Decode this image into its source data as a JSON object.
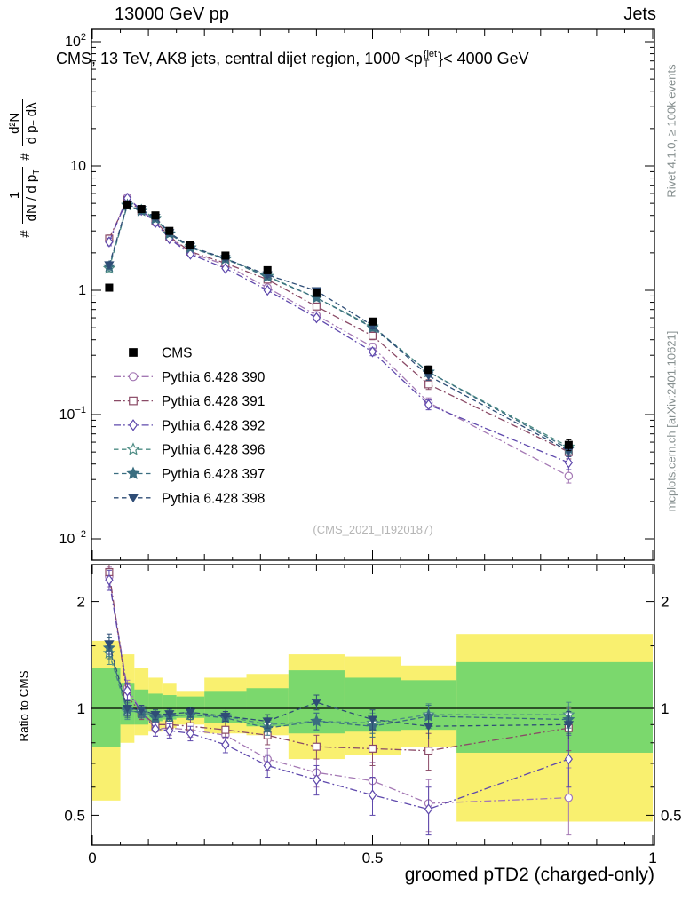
{
  "header": {
    "left": "13000 GeV pp",
    "right": "Jets"
  },
  "labels": {
    "title_pre": "CMS, 13 TeV, AK8 jets, central dijet region, 1000 <p",
    "title_sup": "{jet",
    "title_sub": "T",
    "title_post": "}< 4000 GeV",
    "ylabel": {
      "hash1": "#",
      "f1num": "1",
      "f1den_pre": "dN / d p",
      "f1den_sub": "T",
      "hash2": "#",
      "f2num": "d²N",
      "f2den_pre": "d p",
      "f2den_sub": "T",
      "f2den_post": " dλ"
    },
    "ratio_ylabel": "Ratio to CMS",
    "xlabel": "groomed pTD2 (charged-only)",
    "watermark": "(CMS_2021_I1920187)",
    "rivet": "Rivet 4.1.0, ≥ 100k events",
    "mcplots": "mcplots.cern.ch [arXiv:2401.10621]"
  },
  "chart_data": {
    "type": "line",
    "title": "CMS, 13 TeV, AK8 jets, central dijet region, 1000 < pT{jet} < 4000 GeV",
    "xlabel": "groomed pTD2 (charged-only)",
    "ylabel": "# 1/(dN/dpT) # d²N/(dpT dλ)",
    "ylabel_ratio": "Ratio to CMS",
    "legend_position": "middle-left",
    "colors": {
      "band_yellow": "#f9f06f",
      "band_green": "#7bd86d",
      "frame": "#000000",
      "watermark": "#b5b5b5",
      "side_text": "#868f8f"
    },
    "x_axis": {
      "lim": [
        0,
        1
      ],
      "major": [
        {
          "v": 0,
          "label": "0"
        },
        {
          "v": 0.5,
          "label": "0.5"
        },
        {
          "v": 1,
          "label": "1"
        }
      ],
      "minor_step": 0.05
    },
    "main": {
      "yscale": "log",
      "ylim": [
        0.01,
        100
      ],
      "yticks": [
        {
          "v": 100,
          "base": "10",
          "exp": "2"
        },
        {
          "v": 10,
          "base": "10",
          "exp": ""
        },
        {
          "v": 1,
          "base": "1",
          "exp": ""
        },
        {
          "v": 0.1,
          "base": "10",
          "exp": "−1"
        },
        {
          "v": 0.01,
          "base": "10",
          "exp": "−2"
        }
      ]
    },
    "ratio_panel": {
      "yscale": "log",
      "ylim": [
        0.41,
        2.54
      ],
      "reference": 1,
      "yticks": [
        {
          "v": 2,
          "label": "2"
        },
        {
          "v": 1,
          "label": "1"
        },
        {
          "v": 0.5,
          "label": "0.5"
        }
      ],
      "yminor": [
        0.6,
        0.7,
        0.8,
        0.9,
        1.5
      ],
      "bands": {
        "edges": [
          0,
          0.05,
          0.075,
          0.1,
          0.125,
          0.15,
          0.2,
          0.275,
          0.35,
          0.45,
          0.55,
          0.65,
          1.0
        ],
        "yellow": [
          [
            0.55,
            1.55
          ],
          [
            0.8,
            1.42
          ],
          [
            0.84,
            1.3
          ],
          [
            0.86,
            1.22
          ],
          [
            0.88,
            1.18
          ],
          [
            0.9,
            1.12
          ],
          [
            0.85,
            1.22
          ],
          [
            0.84,
            1.25
          ],
          [
            0.72,
            1.42
          ],
          [
            0.74,
            1.4
          ],
          [
            0.78,
            1.32
          ],
          [
            0.48,
            1.62
          ]
        ],
        "green": [
          [
            0.78,
            1.3
          ],
          [
            0.9,
            1.18
          ],
          [
            0.9,
            1.13
          ],
          [
            0.92,
            1.1
          ],
          [
            0.93,
            1.09
          ],
          [
            0.94,
            1.08
          ],
          [
            0.91,
            1.12
          ],
          [
            0.89,
            1.14
          ],
          [
            0.85,
            1.28
          ],
          [
            0.86,
            1.22
          ],
          [
            0.87,
            1.2
          ],
          [
            0.75,
            1.35
          ]
        ]
      }
    },
    "x": [
      0.03,
      0.0625,
      0.0875,
      0.1125,
      0.1375,
      0.175,
      0.2375,
      0.3125,
      0.4,
      0.5,
      0.6,
      0.85
    ],
    "series": [
      {
        "name": "CMS",
        "marker": "square",
        "filled": true,
        "color": "#000000",
        "line": "none",
        "values": [
          1.05,
          4.9,
          4.5,
          4.0,
          3.0,
          2.3,
          1.9,
          1.45,
          0.95,
          0.56,
          0.23,
          0.057
        ],
        "err_rel": [
          0.04,
          0.03,
          0.03,
          0.03,
          0.03,
          0.03,
          0.03,
          0.03,
          0.04,
          0.05,
          0.07,
          0.1
        ],
        "ratio": null
      },
      {
        "name": "Pythia 6.428 390",
        "marker": "circle",
        "filled": false,
        "color": "#a478b4",
        "line": "dashdot",
        "values": [
          2.5,
          5.6,
          4.4,
          3.5,
          2.65,
          2.0,
          1.6,
          1.05,
          0.63,
          0.35,
          0.125,
          0.032
        ],
        "err_rel": [
          0.07,
          0.04,
          0.03,
          0.03,
          0.03,
          0.03,
          0.03,
          0.04,
          0.05,
          0.07,
          0.09,
          0.12
        ],
        "ratio": [
          2.35,
          1.14,
          0.98,
          0.875,
          0.88,
          0.87,
          0.84,
          0.72,
          0.66,
          0.625,
          0.54,
          0.56
        ],
        "ratio_err": [
          0.15,
          0.06,
          0.04,
          0.04,
          0.04,
          0.04,
          0.04,
          0.05,
          0.06,
          0.08,
          0.09,
          0.12
        ]
      },
      {
        "name": "Pythia 6.428 391",
        "marker": "square",
        "filled": false,
        "color": "#8a4a66",
        "line": "dashdot",
        "values": [
          2.6,
          5.3,
          4.35,
          3.6,
          2.7,
          2.05,
          1.65,
          1.22,
          0.74,
          0.43,
          0.175,
          0.05
        ],
        "err_rel": [
          0.07,
          0.04,
          0.03,
          0.03,
          0.03,
          0.03,
          0.03,
          0.04,
          0.05,
          0.07,
          0.09,
          0.12
        ],
        "ratio": [
          2.42,
          1.08,
          0.97,
          0.9,
          0.9,
          0.89,
          0.87,
          0.84,
          0.78,
          0.77,
          0.76,
          0.88
        ],
        "ratio_err": [
          0.15,
          0.06,
          0.04,
          0.04,
          0.04,
          0.04,
          0.04,
          0.05,
          0.06,
          0.08,
          0.09,
          0.12
        ]
      },
      {
        "name": "Pythia 6.428 392",
        "marker": "diamond",
        "filled": false,
        "color": "#5e48ac",
        "line": "dashdot",
        "values": [
          2.45,
          5.5,
          4.4,
          3.5,
          2.6,
          1.95,
          1.5,
          1.0,
          0.6,
          0.32,
          0.12,
          0.041
        ],
        "err_rel": [
          0.07,
          0.04,
          0.03,
          0.03,
          0.03,
          0.03,
          0.03,
          0.04,
          0.05,
          0.07,
          0.09,
          0.12
        ],
        "ratio": [
          2.3,
          1.12,
          0.98,
          0.875,
          0.865,
          0.85,
          0.79,
          0.69,
          0.63,
          0.57,
          0.52,
          0.72
        ],
        "ratio_err": [
          0.15,
          0.06,
          0.04,
          0.04,
          0.04,
          0.04,
          0.04,
          0.05,
          0.06,
          0.07,
          0.08,
          0.12
        ]
      },
      {
        "name": "Pythia 6.428 396",
        "marker": "star",
        "filled": false,
        "color": "#4d8c84",
        "line": "dashed",
        "values": [
          1.5,
          4.8,
          4.4,
          3.8,
          2.85,
          2.2,
          1.8,
          1.3,
          0.87,
          0.51,
          0.22,
          0.055
        ],
        "err_rel": [
          0.06,
          0.04,
          0.03,
          0.03,
          0.03,
          0.03,
          0.03,
          0.04,
          0.05,
          0.06,
          0.08,
          0.1
        ],
        "ratio": [
          1.43,
          0.98,
          0.98,
          0.95,
          0.95,
          0.96,
          0.95,
          0.9,
          0.92,
          0.91,
          0.96,
          0.96
        ],
        "ratio_err": [
          0.1,
          0.05,
          0.03,
          0.03,
          0.03,
          0.03,
          0.03,
          0.04,
          0.05,
          0.06,
          0.07,
          0.08
        ]
      },
      {
        "name": "Pythia 6.428 397",
        "marker": "star",
        "filled": true,
        "color": "#3a6e80",
        "line": "dashed",
        "values": [
          1.55,
          4.85,
          4.35,
          3.75,
          2.85,
          2.2,
          1.78,
          1.28,
          0.87,
          0.5,
          0.22,
          0.053
        ],
        "err_rel": [
          0.06,
          0.04,
          0.03,
          0.03,
          0.03,
          0.03,
          0.03,
          0.04,
          0.05,
          0.06,
          0.08,
          0.1
        ],
        "ratio": [
          1.48,
          0.99,
          0.97,
          0.94,
          0.95,
          0.96,
          0.94,
          0.88,
          0.92,
          0.89,
          0.95,
          0.93
        ],
        "ratio_err": [
          0.1,
          0.05,
          0.03,
          0.03,
          0.03,
          0.03,
          0.03,
          0.04,
          0.05,
          0.06,
          0.07,
          0.08
        ]
      },
      {
        "name": "Pythia 6.428 398",
        "marker": "triangle-down",
        "filled": true,
        "color": "#2f4d76",
        "line": "dashed",
        "values": [
          1.6,
          4.9,
          4.45,
          3.85,
          2.9,
          2.25,
          1.8,
          1.33,
          0.99,
          0.52,
          0.205,
          0.051
        ],
        "err_rel": [
          0.06,
          0.04,
          0.03,
          0.03,
          0.03,
          0.03,
          0.03,
          0.04,
          0.05,
          0.06,
          0.08,
          0.1
        ],
        "ratio": [
          1.52,
          1.0,
          0.99,
          0.96,
          0.965,
          0.975,
          0.95,
          0.92,
          1.04,
          0.93,
          0.89,
          0.9
        ],
        "ratio_err": [
          0.1,
          0.05,
          0.03,
          0.03,
          0.03,
          0.03,
          0.03,
          0.04,
          0.05,
          0.06,
          0.07,
          0.08
        ]
      }
    ]
  }
}
